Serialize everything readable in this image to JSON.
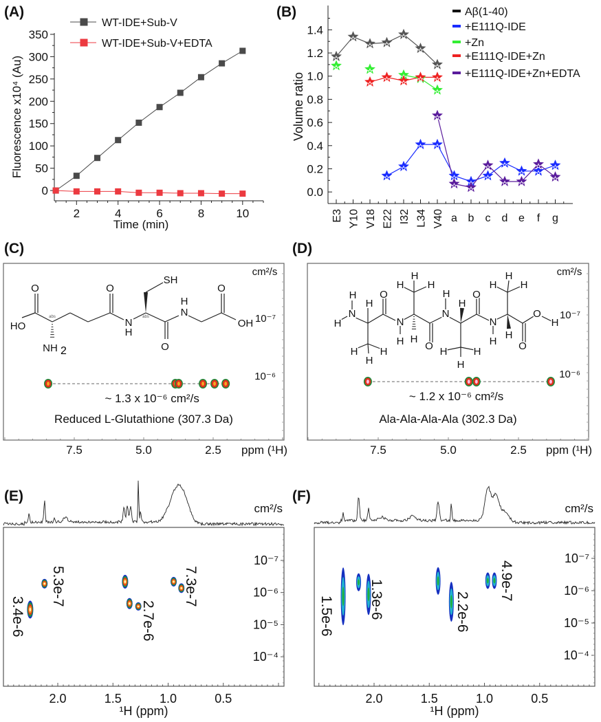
{
  "panel_labels": [
    "(A)",
    "(B)",
    "(C)",
    "(D)",
    "(E)",
    "(F)"
  ],
  "chart_data": [
    {
      "type": "line",
      "xlabel": "Time (min)",
      "ylabel": "Fluorescence x10⁴ (Au)",
      "x": [
        1,
        2,
        3,
        4,
        5,
        6,
        7,
        8,
        9,
        10
      ],
      "xticks": [
        "2",
        "4",
        "6",
        "8",
        "10"
      ],
      "yticks": [
        "0",
        "50",
        "100",
        "150",
        "200",
        "250",
        "300",
        "350"
      ],
      "xlim": [
        0.93,
        11.0
      ],
      "ylim": [
        -23,
        353
      ],
      "legend": "top-left",
      "grid": false,
      "series": [
        {
          "name": "WT-IDE+Sub-V",
          "color": "#4a4a4a",
          "marker": "square",
          "values": [
            0,
            33,
            73,
            113,
            152,
            187,
            219,
            254,
            285,
            313
          ]
        },
        {
          "name": "WT-IDE+Sub-V+EDTA",
          "color": "#ec3a40",
          "marker": "square",
          "values": [
            0,
            -2,
            -2,
            -2,
            -5,
            -5,
            -6,
            -6,
            -7,
            -7
          ]
        }
      ]
    },
    {
      "type": "line",
      "xlabel": "",
      "ylabel": "Volume ratio",
      "categories": [
        "E3",
        "Y10",
        "V18",
        "E22",
        "I32",
        "L34",
        "V40",
        "a",
        "b",
        "c",
        "d",
        "e",
        "f",
        "g"
      ],
      "yticks": [
        "0.0",
        "0.2",
        "0.4",
        "0.6",
        "0.8",
        "1.0",
        "1.2",
        "1.4"
      ],
      "ylim": [
        -0.1,
        1.61
      ],
      "legend": "top-right",
      "grid": false,
      "series": [
        {
          "name": "Aβ(1-40)",
          "color": "#555555",
          "legend_color": "#111111",
          "marker": "star",
          "values": [
            1.17,
            1.34,
            1.28,
            1.29,
            1.36,
            1.24,
            1.1,
            null,
            null,
            null,
            null,
            null,
            null,
            null
          ]
        },
        {
          "name": "+E111Q-IDE",
          "color": "#1a2cff",
          "marker": "star",
          "values": [
            null,
            null,
            null,
            0.14,
            0.22,
            0.41,
            0.41,
            0.14,
            0.09,
            0.14,
            0.25,
            0.18,
            0.18,
            0.23
          ]
        },
        {
          "name": "+Zn",
          "color": "#33ee33",
          "marker": "star",
          "values": [
            1.09,
            null,
            1.06,
            null,
            1.01,
            0.98,
            0.88,
            null,
            null,
            null,
            null,
            null,
            null,
            null
          ]
        },
        {
          "name": "+E111Q-IDE+Zn",
          "color": "#ee2222",
          "marker": "star",
          "values": [
            null,
            null,
            0.95,
            0.99,
            0.96,
            0.99,
            0.99,
            null,
            null,
            null,
            null,
            null,
            null,
            null
          ]
        },
        {
          "name": "+E111Q-IDE+Zn+EDTA",
          "color": "#5a1c9c",
          "marker": "star",
          "values": [
            null,
            null,
            null,
            null,
            null,
            null,
            0.66,
            0.07,
            0.04,
            0.23,
            0.09,
            0.09,
            0.24,
            0.13
          ]
        }
      ]
    },
    {
      "type": "scatter",
      "title": "Reduced L-Glutathione (307.3 Da)",
      "annotation": "~ 1.3 x 10⁻⁶ cm²/s",
      "xlabel": "ppm (¹H)",
      "ylabel": "cm²/s",
      "xticks": [
        "7.5",
        "5.0",
        "2.5"
      ],
      "yticks": [
        "10⁻⁷",
        "10⁻⁶"
      ],
      "xlim": [
        10.05,
        -0.05
      ],
      "peaks": [
        {
          "ppm": 8.44,
          "D": 1.3e-06
        },
        {
          "ppm": 3.86,
          "D": 1.3e-06
        },
        {
          "ppm": 3.74,
          "D": 1.3e-06
        },
        {
          "ppm": 2.87,
          "D": 1.3e-06
        },
        {
          "ppm": 2.45,
          "D": 1.3e-06
        },
        {
          "ppm": 2.05,
          "D": 1.3e-06
        }
      ],
      "structure_atoms": [
        "O",
        "O",
        "SH",
        "O",
        "HO",
        "N",
        "H",
        "N",
        "H",
        "OH",
        "O",
        "NH",
        "2",
        "abs",
        "abs"
      ]
    },
    {
      "type": "scatter",
      "title": "Ala-Ala-Ala-Ala (302.3 Da)",
      "annotation": "~ 1.2 x 10⁻⁶ cm²/s",
      "xlabel": "ppm (¹H)",
      "ylabel": "cm²/s",
      "xticks": [
        "7.5",
        "5.0",
        "2.5"
      ],
      "yticks": [
        "10⁻⁷",
        "10⁻⁶"
      ],
      "xlim": [
        10.05,
        -0.05
      ],
      "peaks": [
        {
          "ppm": 7.87,
          "D": 1.2e-06
        },
        {
          "ppm": 4.27,
          "D": 1.2e-06
        },
        {
          "ppm": 4.0,
          "D": 1.2e-06
        },
        {
          "ppm": 1.35,
          "D": 1.2e-06
        }
      ],
      "structure_atoms": [
        "N",
        "H",
        "H",
        "H",
        "H",
        "H",
        "H",
        "O",
        "N",
        "H",
        "H",
        "H",
        "H",
        "H",
        "O",
        "N",
        "H",
        "H",
        "H",
        "H",
        "H",
        "O",
        "N",
        "H",
        "H",
        "H",
        "H",
        "H",
        "O",
        "O",
        "H"
      ]
    },
    {
      "type": "scatter",
      "xlabel": "¹H (ppm)",
      "ylabel": "cm²/s",
      "xticks": [
        "2.0",
        "1.5",
        "1.0",
        "0.5"
      ],
      "yticks": [
        "10⁻⁷",
        "10⁻⁶",
        "10⁻⁵",
        "10⁻⁴"
      ],
      "xlim": [
        2.5,
        0.0
      ],
      "log_y": true,
      "peaks": [
        {
          "ppm": 2.25,
          "D": 3.4e-06
        },
        {
          "ppm": 2.12,
          "D": 5.3e-07
        },
        {
          "ppm": 1.39,
          "D": 4.6e-07
        },
        {
          "ppm": 1.35,
          "D": 2.2e-06
        },
        {
          "ppm": 1.27,
          "D": 2.7e-06
        },
        {
          "ppm": 0.95,
          "D": 4.6e-07
        },
        {
          "ppm": 0.88,
          "D": 7.3e-07
        }
      ],
      "annotations": [
        "3.4e-6",
        "5.3e-7",
        "2.7e-6",
        "7.3e-7"
      ],
      "trace_peaks": [
        {
          "ppm": 2.26,
          "h": 0.22,
          "w": 0.005
        },
        {
          "ppm": 2.12,
          "h": 0.5,
          "w": 0.006
        },
        {
          "ppm": 2.03,
          "h": 0.1,
          "w": 0.006
        },
        {
          "ppm": 1.93,
          "h": 0.1,
          "w": 0.02
        },
        {
          "ppm": 1.4,
          "h": 0.35,
          "w": 0.008
        },
        {
          "ppm": 1.37,
          "h": 0.4,
          "w": 0.008
        },
        {
          "ppm": 1.34,
          "h": 0.38,
          "w": 0.008
        },
        {
          "ppm": 1.27,
          "h": 1.0,
          "w": 0.004
        },
        {
          "ppm": 1.25,
          "h": 0.25,
          "w": 0.006
        },
        {
          "ppm": 0.93,
          "h": 0.75,
          "w": 0.06
        },
        {
          "ppm": 0.85,
          "h": 0.4,
          "w": 0.05
        }
      ]
    },
    {
      "type": "scatter",
      "xlabel": "¹H (ppm)",
      "ylabel": "cm²/s",
      "xticks": [
        "2.0",
        "1.5",
        "1.0",
        "0.5"
      ],
      "yticks": [
        "10⁻⁷",
        "10⁻⁶",
        "10⁻⁵",
        "10⁻⁴"
      ],
      "xlim": [
        2.5,
        0.0
      ],
      "log_y": true,
      "peaks": [
        {
          "ppm": 2.28,
          "D": 1.5e-06
        },
        {
          "ppm": 2.14,
          "D": 5.5e-07
        },
        {
          "ppm": 2.05,
          "D": 1.3e-06
        },
        {
          "ppm": 1.42,
          "D": 5e-07
        },
        {
          "ppm": 1.3,
          "D": 2.2e-06
        },
        {
          "ppm": 0.97,
          "D": 4.9e-07
        },
        {
          "ppm": 0.91,
          "D": 4.9e-07
        }
      ],
      "annotations": [
        "1.5e-6",
        "1.3e-6",
        "2.2e-6",
        "4.9e-7"
      ],
      "trace_peaks": [
        {
          "ppm": 2.28,
          "h": 0.2,
          "w": 0.006
        },
        {
          "ppm": 2.14,
          "h": 0.7,
          "w": 0.008
        },
        {
          "ppm": 2.05,
          "h": 0.35,
          "w": 0.007
        },
        {
          "ppm": 1.93,
          "h": 0.1,
          "w": 0.03
        },
        {
          "ppm": 1.65,
          "h": 0.12,
          "w": 0.03
        },
        {
          "ppm": 1.42,
          "h": 0.55,
          "w": 0.01
        },
        {
          "ppm": 1.3,
          "h": 0.5,
          "w": 0.005
        },
        {
          "ppm": 0.97,
          "h": 0.95,
          "w": 0.025
        },
        {
          "ppm": 0.9,
          "h": 0.75,
          "w": 0.03
        },
        {
          "ppm": 0.82,
          "h": 0.3,
          "w": 0.04
        }
      ]
    }
  ]
}
